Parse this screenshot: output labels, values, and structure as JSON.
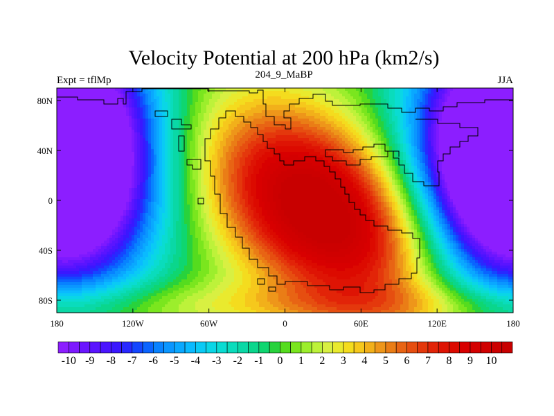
{
  "chart_data": {
    "type": "heatmap",
    "title": "Velocity Potential at 200 hPa (km2/s)",
    "subtitle_left": "Expt = tflMp",
    "subtitle_center": "204_9_MaBP",
    "subtitle_right": "JJA",
    "xlabel": "",
    "ylabel": "",
    "x_range": [
      -180,
      180
    ],
    "y_range": [
      -90,
      90
    ],
    "x_ticks": [
      {
        "value": -180,
        "label": "180"
      },
      {
        "value": -120,
        "label": "120W"
      },
      {
        "value": -60,
        "label": "60W"
      },
      {
        "value": 0,
        "label": "0"
      },
      {
        "value": 60,
        "label": "60E"
      },
      {
        "value": 120,
        "label": "120E"
      },
      {
        "value": 180,
        "label": "180"
      }
    ],
    "y_ticks": [
      {
        "value": 80,
        "label": "80N"
      },
      {
        "value": 40,
        "label": "40N"
      },
      {
        "value": 0,
        "label": "0"
      },
      {
        "value": -40,
        "label": "40S"
      },
      {
        "value": -80,
        "label": "80S"
      }
    ],
    "field_features": [
      {
        "name": "velocity-potential-maximum",
        "lon": 25,
        "lat": -8,
        "value": 10.5
      },
      {
        "name": "velocity-potential-minimum-east",
        "lon": 175,
        "lat": 35,
        "value": -10.5
      },
      {
        "name": "velocity-potential-minimum-west",
        "lon": -175,
        "lat": 35,
        "value": -10.5
      }
    ],
    "colorbar": {
      "min": -10.5,
      "max": 10.5,
      "step": 0.5,
      "labels": [
        "-10",
        "-9",
        "-8",
        "-7",
        "-6",
        "-5",
        "-4",
        "-3",
        "-2",
        "-1",
        "0",
        "1",
        "2",
        "3",
        "4",
        "5",
        "6",
        "7",
        "8",
        "9",
        "10"
      ],
      "colors": [
        "#8c1eff",
        "#7d19ff",
        "#6a16ff",
        "#5a14ff",
        "#4a14ff",
        "#3a17ff",
        "#2828ff",
        "#1446ff",
        "#0a64ff",
        "#0882ff",
        "#0a96ff",
        "#0aa8ff",
        "#0abaff",
        "#0acaf5",
        "#0ad6e6",
        "#0adcd2",
        "#0adcbc",
        "#0ad8a6",
        "#0ad68c",
        "#0fd670",
        "#28d23c",
        "#55dc1e",
        "#7ae61e",
        "#9cee2c",
        "#bdf23a",
        "#d8f042",
        "#e9ea2e",
        "#f4dc1e",
        "#f6c81c",
        "#f2b01a",
        "#ee961a",
        "#ea7d16",
        "#e86414",
        "#e64e10",
        "#e4380c",
        "#e22408",
        "#de1404",
        "#dc0a00",
        "#d80000",
        "#d40000",
        "#d00000",
        "#cc0000",
        "#c80000"
      ]
    }
  }
}
